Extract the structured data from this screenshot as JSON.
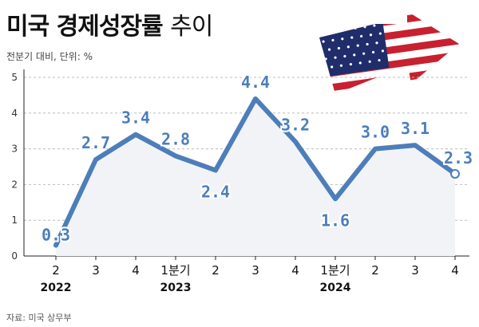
{
  "title_bold": "미국 경제성장률",
  "title_light": "추이",
  "subtitle": "전분기 대비, 단위: %",
  "source": "자료: 미국 상무부",
  "flag_icon": "us-flag-arrow-icon",
  "colors": {
    "line": "#4d7eb9",
    "area": "#f1f3f7",
    "grid": "#bcbcbc"
  },
  "chart_data": {
    "type": "line",
    "categories": [
      "2",
      "3",
      "4",
      "1분기",
      "2",
      "3",
      "4",
      "1분기",
      "2",
      "3",
      "4"
    ],
    "years": [
      {
        "label": "2022",
        "index": 0
      },
      {
        "label": "2023",
        "index": 3
      },
      {
        "label": "2024",
        "index": 7
      }
    ],
    "series": [
      {
        "values": [
          0.3,
          2.7,
          3.4,
          2.8,
          2.4,
          4.4,
          3.2,
          1.6,
          3.0,
          3.1,
          2.3
        ]
      }
    ],
    "data_labels": [
      "0.3",
      "2.7",
      "3.4",
      "2.8",
      "2.4",
      "4.4",
      "3.2",
      "1.6",
      "3.0",
      "3.1",
      "2.3"
    ],
    "yticks": [
      "0",
      "1",
      "2",
      "3",
      "4",
      "5"
    ],
    "ylim": [
      0,
      5
    ],
    "grid": true,
    "area_fill": true
  }
}
